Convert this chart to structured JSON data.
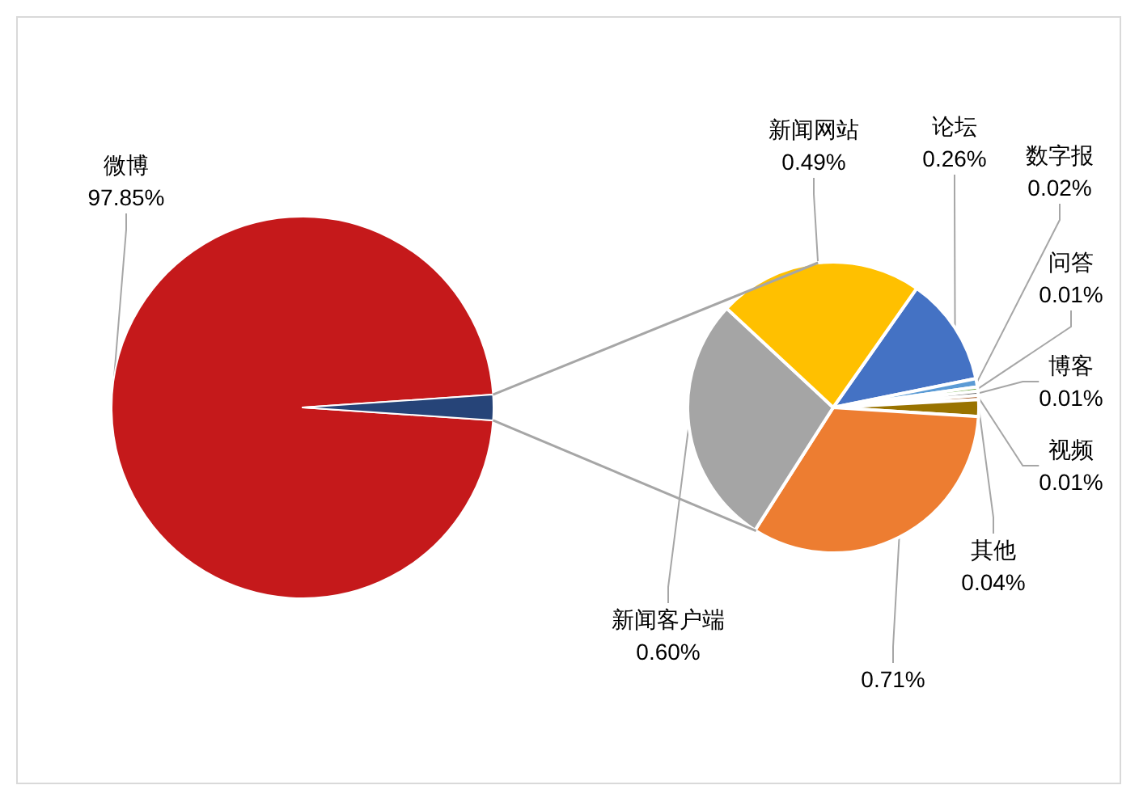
{
  "chart_data": [
    {
      "type": "pie",
      "categories": [
        "微博",
        null
      ],
      "values": [
        97.85,
        2.15
      ],
      "colors": [
        "#c5191b",
        "#264478"
      ],
      "value_labels": [
        "97.85%",
        null
      ]
    },
    {
      "type": "pie",
      "categories": [
        "论坛",
        "数字报",
        "问答",
        "博客",
        "视频",
        "其他",
        null,
        "新闻客户端",
        "新闻网站"
      ],
      "values": [
        0.26,
        0.02,
        0.01,
        0.01,
        0.01,
        0.04,
        0.71,
        0.6,
        0.49
      ],
      "colors": [
        "#4472c4",
        "#5b9bd5",
        "#70ad47",
        "#636363",
        "#9e480e",
        "#997300",
        "#ed7d31",
        "#a5a5a5",
        "#ffc000"
      ],
      "value_labels": [
        "0.26%",
        "0.02%",
        "0.01%",
        "0.01%",
        "0.01%",
        "0.04%",
        "0.71%",
        "0.60%",
        "0.49%"
      ]
    }
  ]
}
